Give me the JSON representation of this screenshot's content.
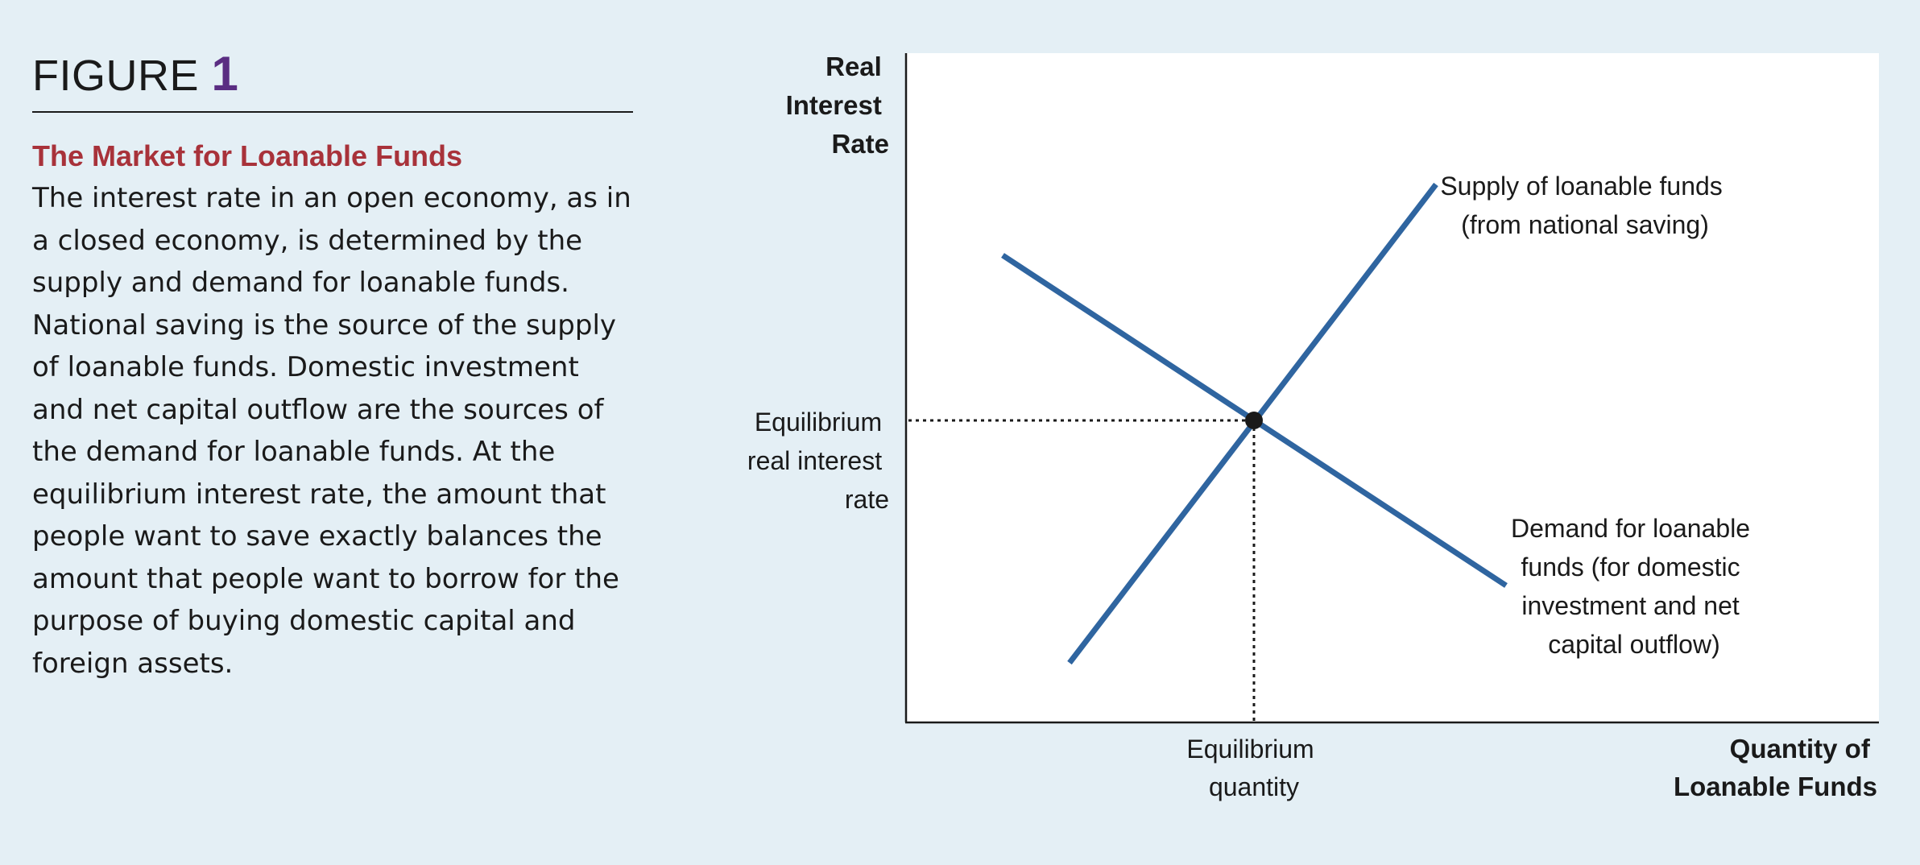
{
  "figure": {
    "label": "FIGURE",
    "number": "1",
    "title": "The Market for Loanable Funds",
    "body": "The interest rate in an open economy, as in a closed economy, is determined by the supply and demand for loanable funds. National saving is the source of the supply of loanable funds. Domestic investment and net capital outflow are the sources of the demand for loanable funds. At the equilibrium interest rate, the amount that people want to save exactly balances the amount that people want to borrow for the purpose of buying domestic capital and foreign assets."
  },
  "diagram": {
    "y_axis_label": [
      "Real",
      "Interest",
      "Rate"
    ],
    "x_axis_label": [
      "Quantity of",
      "Loanable Funds"
    ],
    "eq_rate_label": [
      "Equilibrium",
      "real interest",
      "rate"
    ],
    "eq_quantity_label": [
      "Equilibrium",
      "quantity"
    ],
    "supply_label": [
      "Supply of loanable funds",
      "(from national saving)"
    ],
    "demand_label": [
      "Demand for loanable",
      "funds (for domestic",
      "investment and net",
      "capital outflow)"
    ],
    "colors": {
      "curve": "#2f65a0",
      "plot_bg": "#ffffff",
      "page_bg": "#e4eff5",
      "title": "#a8323a",
      "figure_number": "#5a2d82"
    }
  }
}
